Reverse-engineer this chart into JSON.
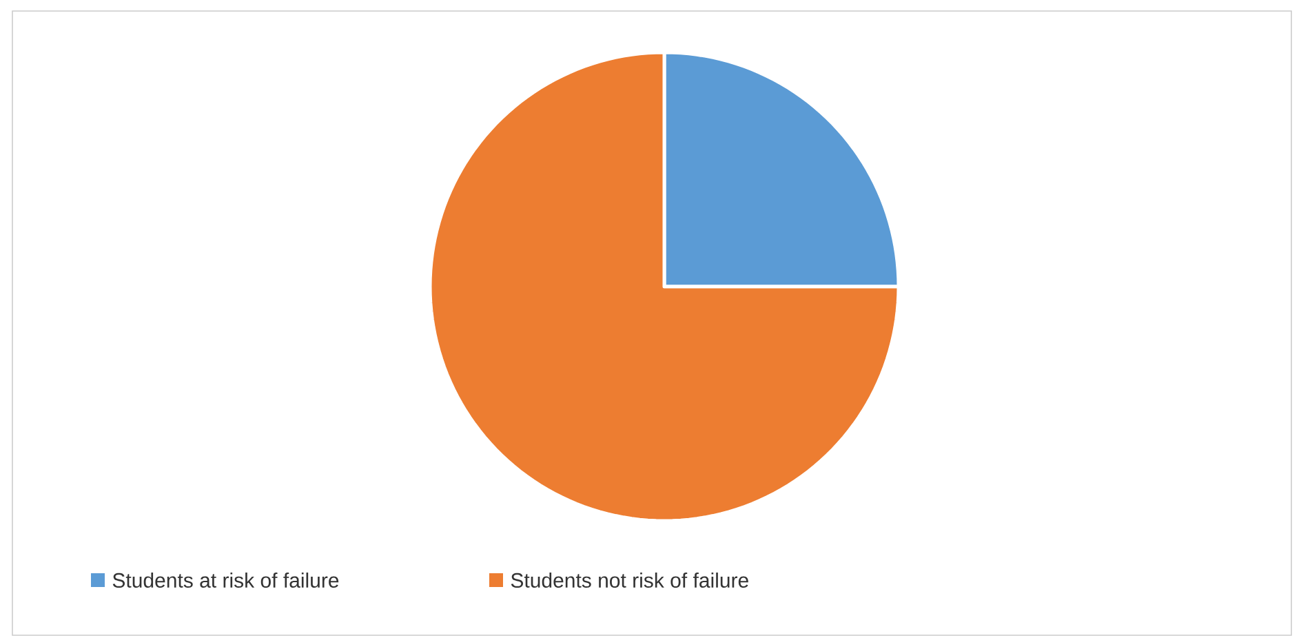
{
  "chart_data": {
    "type": "pie",
    "categories": [
      "Students at risk of failure",
      "Students not risk of failure"
    ],
    "values": [
      25,
      75
    ],
    "colors": [
      "#5b9bd5",
      "#ed7d31"
    ],
    "legend": "bottom"
  }
}
